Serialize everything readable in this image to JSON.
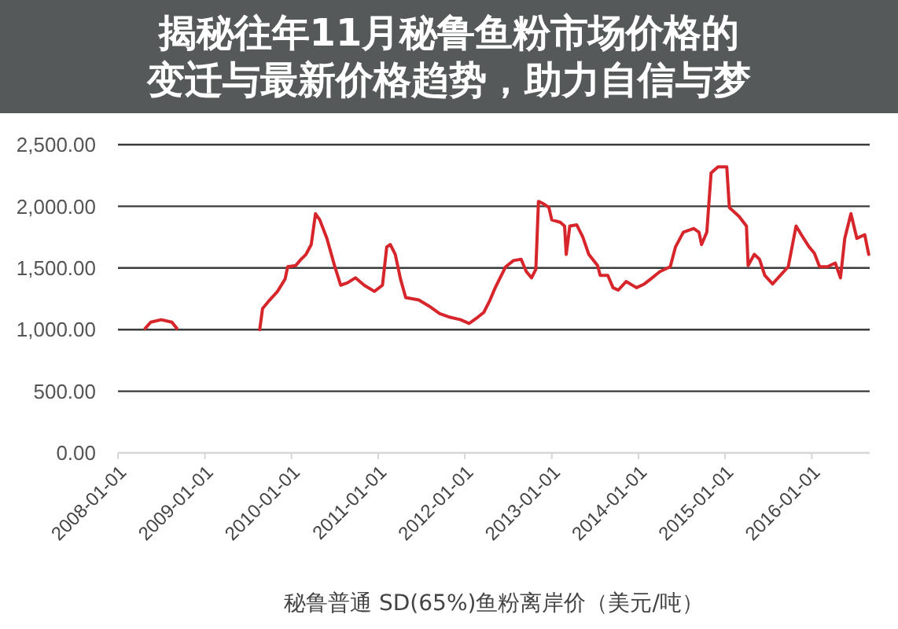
{
  "chart_data": {
    "type": "line",
    "title": "揭秘往年11月秘鲁鱼粉市场价格的变迁与最新价格趋势，助力自信与梦",
    "xlabel": "秘鲁普通 SD(65%)鱼粉离岸价（美元/吨）",
    "x": [
      "2008-04-25",
      "2008-05-18",
      "2008-07-01",
      "2008-08-15",
      "2008-09-05",
      "2009-01-15",
      "2009-08-20",
      "2009-09-01",
      "2009-10-01",
      "2009-11-03",
      "2009-12-05",
      "2009-12-16",
      "2010-01-19",
      "2010-02-10",
      "2010-03-03",
      "2010-03-25",
      "2010-04-12",
      "2010-04-30",
      "2010-05-30",
      "2010-07-01",
      "2010-07-27",
      "2010-08-25",
      "2010-09-27",
      "2010-11-03",
      "2010-12-16",
      "2011-01-19",
      "2011-02-06",
      "2011-02-21",
      "2011-03-14",
      "2011-04-05",
      "2011-04-27",
      "2011-06-21",
      "2011-08-04",
      "2011-09-17",
      "2011-10-31",
      "2011-12-14",
      "2012-01-19",
      "2012-02-24",
      "2012-03-21",
      "2012-04-16",
      "2012-05-08",
      "2012-06-21",
      "2012-07-24",
      "2012-08-25",
      "2012-09-16",
      "2012-10-08",
      "2012-10-26",
      "2012-11-06",
      "2012-11-28",
      "2012-12-20",
      "2013-01-01",
      "2013-02-06",
      "2013-02-24",
      "2013-03-03",
      "2013-03-18",
      "2013-04-16",
      "2013-05-12",
      "2013-06-06",
      "2013-07-13",
      "2013-07-24",
      "2013-08-25",
      "2013-09-16",
      "2013-10-08",
      "2013-11-10",
      "2013-12-24",
      "2014-01-26",
      "2014-02-28",
      "2014-04-01",
      "2014-05-15",
      "2014-06-06",
      "2014-07-09",
      "2014-08-22",
      "2014-09-13",
      "2014-09-24",
      "2014-10-16",
      "2014-11-03",
      "2014-12-02",
      "2015-01-08",
      "2015-01-19",
      "2015-02-28",
      "2015-04-01",
      "2015-04-08",
      "2015-05-04",
      "2015-05-26",
      "2015-06-17",
      "2015-07-20",
      "2015-08-22",
      "2015-09-24",
      "2015-10-27",
      "2015-11-18",
      "2015-12-21",
      "2016-01-12",
      "2016-02-03",
      "2016-03-07",
      "2016-04-09",
      "2016-05-01",
      "2016-05-19",
      "2016-06-14",
      "2016-07-09",
      "2016-08-11",
      "2016-08-28"
    ],
    "values": [
      1010,
      1060,
      1080,
      1060,
      1010,
      null,
      1000,
      1170,
      1240,
      1310,
      1410,
      1510,
      1520,
      1570,
      1610,
      1690,
      1940,
      1890,
      1740,
      1520,
      1360,
      1380,
      1420,
      1360,
      1310,
      1360,
      1670,
      1690,
      1610,
      1410,
      1260,
      1240,
      1190,
      1130,
      1100,
      1080,
      1050,
      1100,
      1140,
      1240,
      1340,
      1510,
      1560,
      1570,
      1470,
      1420,
      1490,
      2040,
      2020,
      1990,
      1890,
      1870,
      1840,
      1610,
      1840,
      1850,
      1750,
      1610,
      1520,
      1440,
      1440,
      1340,
      1320,
      1390,
      1340,
      1370,
      1420,
      1470,
      1510,
      1670,
      1790,
      1820,
      1790,
      1690,
      1790,
      2270,
      2320,
      2320,
      1990,
      1920,
      1840,
      1520,
      1610,
      1570,
      1440,
      1370,
      1440,
      1510,
      1840,
      1770,
      1670,
      1620,
      1510,
      1510,
      1540,
      1420,
      1740,
      1940,
      1740,
      1770,
      1610
    ],
    "color": "#d7262b",
    "xlim": [
      "2008-01-01",
      "2016-09-01"
    ],
    "xticks": [
      "2008-01-01",
      "2009-01-01",
      "2010-01-01",
      "2011-01-01",
      "2012-01-01",
      "2013-01-01",
      "2014-01-01",
      "2015-01-01",
      "2016-01-01"
    ],
    "ylim": [
      0,
      2500
    ],
    "yticks": [
      {
        "value": 0,
        "label": "0.00"
      },
      {
        "value": 500,
        "label": "500.00"
      },
      {
        "value": 1000,
        "label": "1,000.00"
      },
      {
        "value": 1500,
        "label": "1,500.00"
      },
      {
        "value": 2000,
        "label": "2,000.00"
      },
      {
        "value": 2500,
        "label": "2,500.00"
      }
    ],
    "grid": "y"
  }
}
